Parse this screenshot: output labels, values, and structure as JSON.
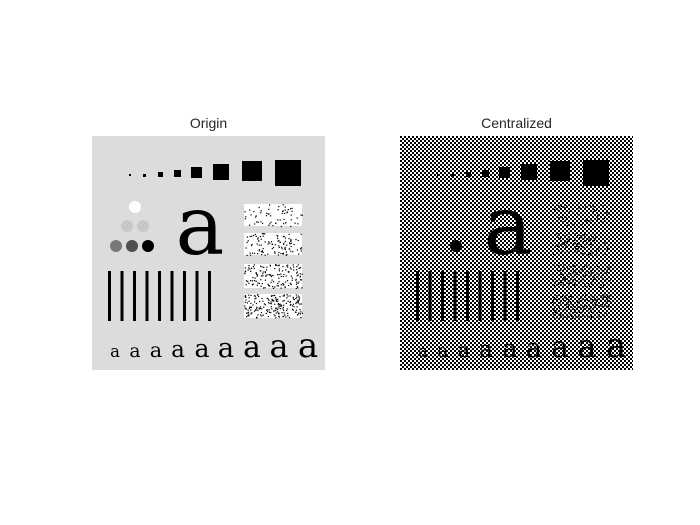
{
  "figure": {
    "background": "#ffffff",
    "panels": [
      {
        "title": "Origin",
        "background_color": "#dcdcdc",
        "object_color": "#000000",
        "texture": "none"
      },
      {
        "title": "Centralized",
        "background_color": "#ffffff",
        "object_color": "#000000",
        "texture": "checkerboard"
      }
    ],
    "test_pattern": {
      "glyph": "a",
      "square_count": 8,
      "bar_count": 9,
      "noise_rectangle_count": 4,
      "circle_gray_levels": [
        "#ffffff",
        "#c8c8c8",
        "#c8c8c8",
        "#787878",
        "#505050",
        "#000000"
      ],
      "small_glyph_count": 9
    }
  }
}
